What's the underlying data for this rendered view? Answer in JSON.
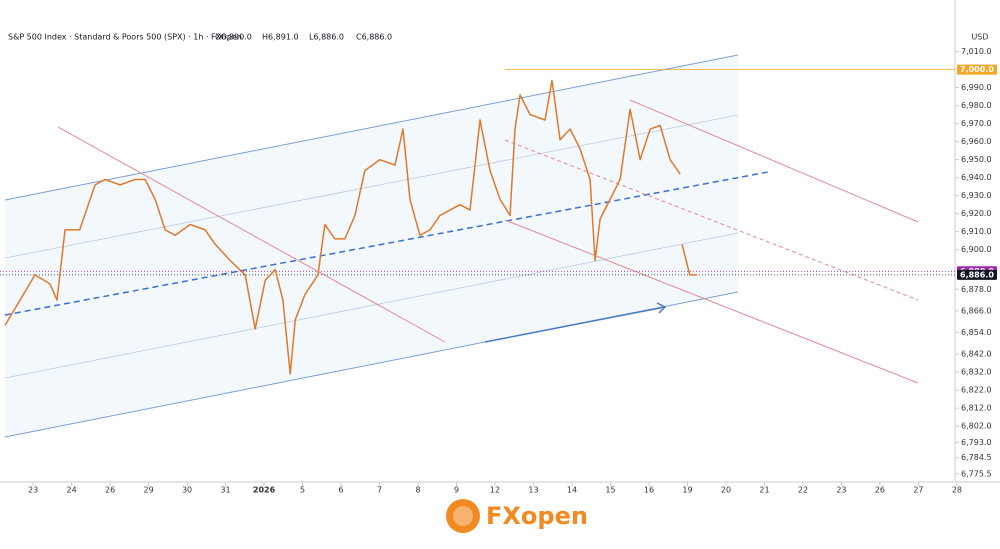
{
  "chart_data": {
    "type": "line",
    "title": "S&P 500 Index · Standard & Poors 500 (SPX) · 1h · FXOpen",
    "ohlc": [
      "O6,890.0",
      "H6,891.0",
      "L6,886.0",
      "C6,886.0"
    ],
    "y_axis_label": "USD",
    "brand": "FXopen",
    "series": [
      {
        "name": "SPX",
        "color": "#e0782a",
        "x": [
          -0.73,
          -0.34,
          0.05,
          0.44,
          0.62,
          0.83,
          1.21,
          1.61,
          1.87,
          2.26,
          2.65,
          2.91,
          3.17,
          3.43,
          3.69,
          4.08,
          4.47,
          4.73,
          5.12,
          5.51,
          5.77,
          6.03,
          6.29,
          6.49,
          6.68,
          6.81,
          7.06,
          7.4,
          7.58,
          7.84,
          8.1,
          8.36,
          8.62,
          9.01,
          9.4,
          9.61,
          9.79,
          10.05,
          10.31,
          10.57,
          10.83,
          11.09,
          11.35,
          11.61,
          11.87,
          12.13,
          12.39,
          12.52,
          12.65,
          12.91,
          13.3,
          13.48,
          13.69,
          13.95,
          14.21,
          14.47,
          14.6,
          14.73,
          14.99,
          15.25,
          15.51,
          15.77,
          16.03,
          16.29,
          16.55,
          16.81,
          16.83,
          16.86,
          17.06,
          17.25
        ],
        "values": [
          6858,
          6872,
          6886,
          6881,
          6872,
          6911,
          6911,
          6936,
          6939,
          6936,
          6939,
          6939,
          6928,
          6911,
          6908,
          6914,
          6911,
          6903,
          6894,
          6886,
          6856,
          6883,
          6889,
          6872,
          6831,
          6861,
          6875,
          6886,
          6914,
          6906,
          6906,
          6919,
          6944,
          6950,
          6947,
          6967,
          6928,
          6908,
          6911,
          6919,
          6922,
          6925,
          6922,
          6972,
          6944,
          6928,
          6919,
          6967,
          6986,
          6975,
          6972,
          6994,
          6961,
          6967,
          6956,
          6939,
          6894,
          6917,
          6928,
          6939,
          6978,
          6950,
          6967,
          6969,
          6950,
          6942,
          null,
          6903,
          6886,
          6886
        ]
      }
    ],
    "xlim": [
      -0.86,
      23.95
    ],
    "ylim": [
      6771,
      7022
    ],
    "xticks": [
      {
        "value": 0,
        "label": "23"
      },
      {
        "value": 1,
        "label": "24"
      },
      {
        "value": 2,
        "label": "26"
      },
      {
        "value": 3,
        "label": "29"
      },
      {
        "value": 4,
        "label": "30"
      },
      {
        "value": 5,
        "label": "31"
      },
      {
        "value": 6,
        "label": "2026"
      },
      {
        "value": 7,
        "label": "5"
      },
      {
        "value": 8,
        "label": "6"
      },
      {
        "value": 9,
        "label": "7"
      },
      {
        "value": 10,
        "label": "8"
      },
      {
        "value": 11,
        "label": "9"
      },
      {
        "value": 12,
        "label": "12"
      },
      {
        "value": 13,
        "label": "13"
      },
      {
        "value": 14,
        "label": "14"
      },
      {
        "value": 15,
        "label": "15"
      },
      {
        "value": 16,
        "label": "16"
      },
      {
        "value": 17,
        "label": "19"
      },
      {
        "value": 18,
        "label": "20"
      },
      {
        "value": 19,
        "label": "21"
      },
      {
        "value": 20,
        "label": "22"
      },
      {
        "value": 21,
        "label": "23"
      },
      {
        "value": 22,
        "label": "26"
      },
      {
        "value": 23,
        "label": "27"
      },
      {
        "value": 24,
        "label": "28"
      }
    ],
    "yticks": [
      {
        "value": 7010,
        "label": "7,010.0"
      },
      {
        "value": 6990,
        "label": "6,990.0"
      },
      {
        "value": 6980,
        "label": "6,980.0"
      },
      {
        "value": 6970,
        "label": "6,970.0"
      },
      {
        "value": 6960,
        "label": "6,960.0"
      },
      {
        "value": 6950,
        "label": "6,950.0"
      },
      {
        "value": 6940,
        "label": "6,940.0"
      },
      {
        "value": 6930,
        "label": "6,930.0"
      },
      {
        "value": 6920,
        "label": "6,920.0"
      },
      {
        "value": 6910,
        "label": "6,910.0"
      },
      {
        "value": 6900,
        "label": "6,900.0"
      },
      {
        "value": 6878,
        "label": "6,878.0"
      },
      {
        "value": 6866,
        "label": "6,866.0"
      },
      {
        "value": 6854,
        "label": "6,854.0"
      },
      {
        "value": 6842,
        "label": "6,842.0"
      },
      {
        "value": 6832,
        "label": "6,832.0"
      },
      {
        "value": 6822,
        "label": "6,822.0"
      },
      {
        "value": 6812,
        "label": "6,812.0"
      },
      {
        "value": 6802,
        "label": "6,802.0"
      },
      {
        "value": 6793,
        "label": "6,793.0"
      },
      {
        "value": 6784.5,
        "label": "6,784.5"
      },
      {
        "value": 6775.5,
        "label": "6,775.5"
      }
    ],
    "price_lines": [
      {
        "value": 7000,
        "label": "7,000.0",
        "color": "#f5a623"
      },
      {
        "value": 6888,
        "label": "6,888.0",
        "color": "#9c27b0"
      },
      {
        "value": 6886,
        "label": "6,886.0",
        "color": "#131722"
      }
    ]
  }
}
